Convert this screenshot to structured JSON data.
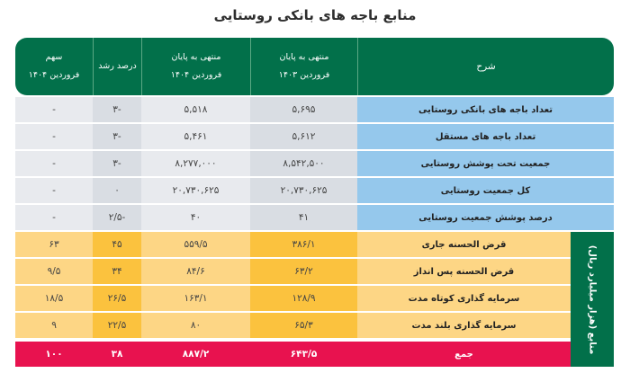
{
  "title": "منابع باجه های بانکی روستایی",
  "header": {
    "share": "سهم\nفروردین ۱۴۰۴",
    "growth": "درصد رشد",
    "end1404": "منتهی به پایان\nفروردین ۱۴۰۴",
    "end1403": "منتهی به پایان\nفروردین ۱۴۰۳",
    "desc": "شرح"
  },
  "side_label": "منابع (هزار میلیارد ریال)",
  "colors": {
    "header_green": "#02704a",
    "label_blue": "#95c8ec",
    "grey_light": "#e8eaee",
    "grey_dark": "#d9dde3",
    "orange_light": "#fdd685",
    "orange_dark": "#fbc23e",
    "total_red": "#e8124f"
  },
  "rows_top": [
    {
      "label": "تعداد باجه های بانکی روستایی",
      "v1403": "۵,۶۹۵",
      "v1404": "۵,۵۱۸",
      "growth": "-۳",
      "share": "-"
    },
    {
      "label": "تعداد باجه های مستقل",
      "v1403": "۵,۶۱۲",
      "v1404": "۵,۴۶۱",
      "growth": "-۳",
      "share": "-"
    },
    {
      "label": "جمعیت تحت پوشش روستایی",
      "v1403": "۸,۵۴۲,۵۰۰",
      "v1404": "۸,۲۷۷,۰۰۰",
      "growth": "-۳",
      "share": "-"
    },
    {
      "label": "کل جمعیت روستایی",
      "v1403": "۲۰,۷۳۰,۶۲۵",
      "v1404": "۲۰,۷۳۰,۶۲۵",
      "growth": "۰",
      "share": "-"
    },
    {
      "label": "درصد پوشش جمعیت روستایی",
      "v1403": "۴۱",
      "v1404": "۴۰",
      "growth": "-۲/۵",
      "share": "-"
    }
  ],
  "rows_resources": [
    {
      "label": "قرض الحسنه جاری",
      "v1403": "۳۸۶/۱",
      "v1404": "۵۵۹/۵",
      "growth": "۴۵",
      "share": "۶۳"
    },
    {
      "label": "قرض الحسنه پس انداز",
      "v1403": "۶۳/۲",
      "v1404": "۸۴/۶",
      "growth": "۳۴",
      "share": "۹/۵"
    },
    {
      "label": "سرمایه گذاری کوتاه مدت",
      "v1403": "۱۲۸/۹",
      "v1404": "۱۶۳/۱",
      "growth": "۲۶/۵",
      "share": "۱۸/۵"
    },
    {
      "label": "سرمایه گذاری بلند مدت",
      "v1403": "۶۵/۳",
      "v1404": "۸۰",
      "growth": "۲۲/۵",
      "share": "۹"
    }
  ],
  "total": {
    "label": "جمع",
    "v1403": "۶۴۳/۵",
    "v1404": "۸۸۷/۲",
    "growth": "۳۸",
    "share": "۱۰۰"
  }
}
